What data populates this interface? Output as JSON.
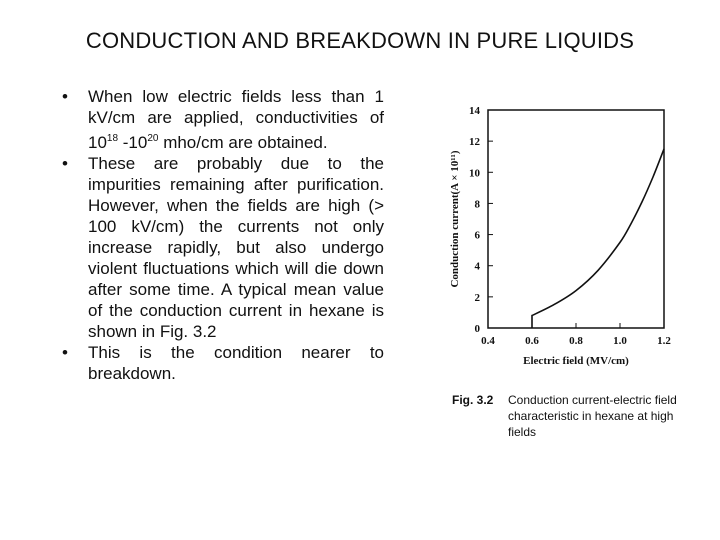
{
  "slide": {
    "title": "CONDUCTION AND BREAKDOWN IN PURE LIQUIDS"
  },
  "bullets": [
    {
      "prefix": "When low electric fields less than 1 kV/cm are applied, conductivities of 10",
      "sup1": "18",
      "mid": " -10",
      "sup2": "20",
      "suffix": " mho/cm are obtained."
    },
    {
      "text": "These are probably due to the impurities remaining after purification. However, when the fields are high (> 100 kV/cm) the currents not only increase rapidly, but also undergo violent fluctuations which will die down after some time. A typical mean value of the conduction current in hexane is shown in Fig. 3.2"
    },
    {
      "text": "This is the condition nearer to breakdown."
    }
  ],
  "caption": {
    "label": "Fig. 3.2",
    "text": "Conduction current-electric field characteristic in hexane at high fields"
  },
  "chart_data": {
    "type": "line",
    "xlabel": "Electric field (MV/cm)",
    "ylabel": "Conduction current(A × 10¹¹)",
    "xlim": [
      0.4,
      1.2
    ],
    "ylim": [
      0,
      14
    ],
    "xticks": [
      "0.4",
      "0.6",
      "0.8",
      "1.0",
      "1.2"
    ],
    "yticks": [
      "0",
      "2",
      "4",
      "6",
      "8",
      "10",
      "12",
      "14"
    ],
    "grid": false,
    "series": [
      {
        "x": [
          0.6,
          0.6,
          0.7,
          0.8,
          0.9,
          1.0,
          1.05,
          1.1,
          1.15,
          1.2
        ],
        "y": [
          0,
          0.8,
          1.5,
          2.4,
          3.7,
          5.5,
          6.7,
          8.1,
          9.7,
          11.5
        ]
      }
    ]
  }
}
